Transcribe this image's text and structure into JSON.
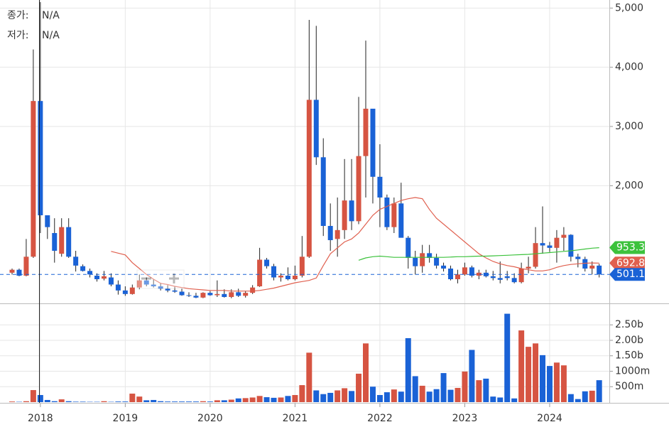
{
  "info": [
    {
      "label": "종가:",
      "value": "N/A"
    },
    {
      "label": "저가:",
      "value": "N/A"
    }
  ],
  "chart_data": {
    "type": "candlestick",
    "categories": [
      null,
      null,
      null,
      null,
      "2018",
      null,
      null,
      null,
      null,
      null,
      null,
      null,
      null,
      null,
      null,
      null,
      "2019",
      null,
      null,
      null,
      null,
      null,
      null,
      null,
      null,
      null,
      null,
      null,
      "2020",
      null,
      null,
      null,
      null,
      null,
      null,
      null,
      null,
      null,
      null,
      null,
      "2021",
      null,
      null,
      null,
      null,
      null,
      null,
      null,
      null,
      null,
      null,
      null,
      "2022",
      null,
      null,
      null,
      null,
      null,
      null,
      null,
      null,
      null,
      null,
      null,
      "2023",
      null,
      null,
      null,
      null,
      null,
      null,
      null,
      null,
      null,
      null,
      null,
      "2024",
      null,
      null,
      null,
      null,
      null,
      null,
      null
    ],
    "open": [
      530,
      580,
      480,
      800,
      3430,
      1500,
      1200,
      850,
      1300,
      800,
      640,
      560,
      480,
      430,
      450,
      330,
      230,
      170,
      280,
      400,
      330,
      300,
      260,
      230,
      210,
      150,
      140,
      110,
      190,
      150,
      170,
      120,
      200,
      140,
      190,
      300,
      750,
      640,
      450,
      480,
      420,
      480,
      800,
      3450,
      2480,
      1320,
      1100,
      1250,
      1750,
      1400,
      2500,
      3300,
      2150,
      1800,
      1300,
      1700,
      1120,
      780,
      640,
      860,
      780,
      650,
      600,
      420,
      500,
      620,
      480,
      530,
      470,
      440,
      470,
      440,
      370,
      600,
      630,
      1030,
      990,
      950,
      1120,
      1170,
      800,
      760,
      600,
      650
    ],
    "high": [
      600,
      600,
      1100,
      4300,
      5100,
      1500,
      1450,
      1450,
      1450,
      900,
      670,
      600,
      520,
      560,
      520,
      400,
      300,
      330,
      500,
      450,
      420,
      360,
      320,
      300,
      260,
      200,
      190,
      200,
      220,
      400,
      250,
      250,
      260,
      220,
      320,
      950,
      780,
      680,
      520,
      620,
      650,
      1150,
      4800,
      4700,
      2800,
      1700,
      1800,
      2450,
      2450,
      3500,
      4450,
      3300,
      2700,
      1850,
      1800,
      2050,
      1150,
      900,
      1000,
      1000,
      850,
      700,
      650,
      580,
      700,
      650,
      580,
      580,
      560,
      720,
      560,
      520,
      700,
      800,
      1300,
      1650,
      1050,
      1250,
      1300,
      1180,
      850,
      800,
      720,
      680
    ],
    "low": [
      500,
      470,
      470,
      780,
      1200,
      1100,
      700,
      800,
      780,
      550,
      550,
      450,
      380,
      400,
      300,
      160,
      140,
      160,
      250,
      300,
      280,
      230,
      200,
      190,
      140,
      120,
      100,
      100,
      140,
      120,
      110,
      100,
      120,
      110,
      170,
      290,
      600,
      400,
      380,
      400,
      400,
      450,
      780,
      2350,
      1150,
      900,
      800,
      1100,
      1250,
      1350,
      1800,
      1700,
      1300,
      1250,
      1200,
      1150,
      600,
      500,
      530,
      700,
      600,
      550,
      400,
      350,
      480,
      450,
      420,
      450,
      400,
      350,
      400,
      350,
      350,
      520,
      600,
      850,
      880,
      700,
      900,
      720,
      620,
      550,
      500,
      450
    ],
    "close": [
      580,
      480,
      800,
      3430,
      1500,
      1300,
      900,
      1300,
      800,
      650,
      560,
      500,
      420,
      470,
      330,
      230,
      170,
      280,
      400,
      330,
      300,
      260,
      230,
      210,
      150,
      140,
      110,
      190,
      150,
      170,
      120,
      200,
      140,
      190,
      280,
      750,
      640,
      450,
      480,
      420,
      480,
      800,
      3450,
      2480,
      1320,
      1080,
      1250,
      1750,
      1400,
      2500,
      3300,
      2150,
      1800,
      1300,
      1700,
      1120,
      780,
      640,
      860,
      780,
      650,
      600,
      420,
      500,
      620,
      480,
      530,
      470,
      440,
      410,
      440,
      370,
      600,
      630,
      1030,
      990,
      950,
      1120,
      1170,
      800,
      760,
      600,
      650,
      501.1
    ],
    "up_color": "#d65442",
    "down_color": "#1a62d6",
    "ylim": [
      0,
      5136
    ],
    "yticks": [
      {
        "value": 2000,
        "label": "2,000"
      },
      {
        "value": 3000,
        "label": "3,000"
      },
      {
        "value": 4000,
        "label": "4,000"
      },
      {
        "value": 5000,
        "label": "5,000"
      }
    ],
    "grid": true,
    "lines": [
      {
        "color": "#e0604f",
        "values": [
          null,
          null,
          null,
          null,
          null,
          null,
          null,
          null,
          null,
          null,
          null,
          null,
          null,
          null,
          890,
          860,
          830,
          700,
          600,
          500,
          420,
          350,
          330,
          300,
          280,
          260,
          250,
          240,
          230,
          230,
          230,
          220,
          220,
          220,
          220,
          230,
          250,
          270,
          300,
          330,
          360,
          380,
          400,
          440,
          650,
          850,
          950,
          1050,
          1100,
          1200,
          1350,
          1500,
          1600,
          1650,
          1700,
          1750,
          1780,
          1800,
          1780,
          1600,
          1450,
          1350,
          1250,
          1150,
          1050,
          950,
          850,
          780,
          720,
          680,
          650,
          630,
          600,
          580,
          560,
          560,
          580,
          620,
          650,
          670,
          680,
          690,
          695,
          692.8
        ]
      },
      {
        "color": "#3cc23c",
        "values": [
          null,
          null,
          null,
          null,
          null,
          null,
          null,
          null,
          null,
          null,
          null,
          null,
          null,
          null,
          null,
          null,
          null,
          null,
          null,
          null,
          null,
          null,
          null,
          null,
          null,
          null,
          null,
          null,
          null,
          null,
          null,
          null,
          null,
          null,
          null,
          null,
          null,
          null,
          null,
          null,
          null,
          null,
          null,
          null,
          null,
          null,
          null,
          null,
          null,
          740,
          780,
          800,
          810,
          800,
          790,
          790,
          790,
          790,
          790,
          790,
          790,
          790,
          795,
          800,
          800,
          805,
          810,
          810,
          815,
          820,
          825,
          830,
          835,
          840,
          850,
          860,
          870,
          880,
          890,
          900,
          915,
          930,
          945,
          953.3
        ]
      }
    ],
    "volume": {
      "values": [
        20,
        10,
        30,
        390,
        230,
        70,
        30,
        90,
        30,
        15,
        15,
        10,
        10,
        30,
        10,
        20,
        20,
        275,
        180,
        60,
        70,
        30,
        20,
        20,
        20,
        20,
        20,
        30,
        20,
        60,
        60,
        80,
        120,
        130,
        150,
        200,
        160,
        140,
        150,
        200,
        230,
        550,
        1600,
        380,
        260,
        300,
        380,
        450,
        360,
        920,
        1900,
        500,
        230,
        320,
        410,
        340,
        2070,
        840,
        530,
        340,
        420,
        940,
        400,
        460,
        990,
        1690,
        710,
        760,
        180,
        150,
        2860,
        120,
        2320,
        1790,
        1900,
        1520,
        1170,
        1280,
        1190,
        260,
        100,
        350,
        370,
        710
      ],
      "ylim": [
        0,
        3172
      ],
      "yticks": [
        {
          "value": 500,
          "label": "500m"
        },
        {
          "value": 1000,
          "label": "1000m"
        },
        {
          "value": 1500,
          "label": "1.50b"
        },
        {
          "value": 2000,
          "label": "2.00b"
        },
        {
          "value": 2500,
          "label": "2.50b"
        }
      ]
    }
  }
}
